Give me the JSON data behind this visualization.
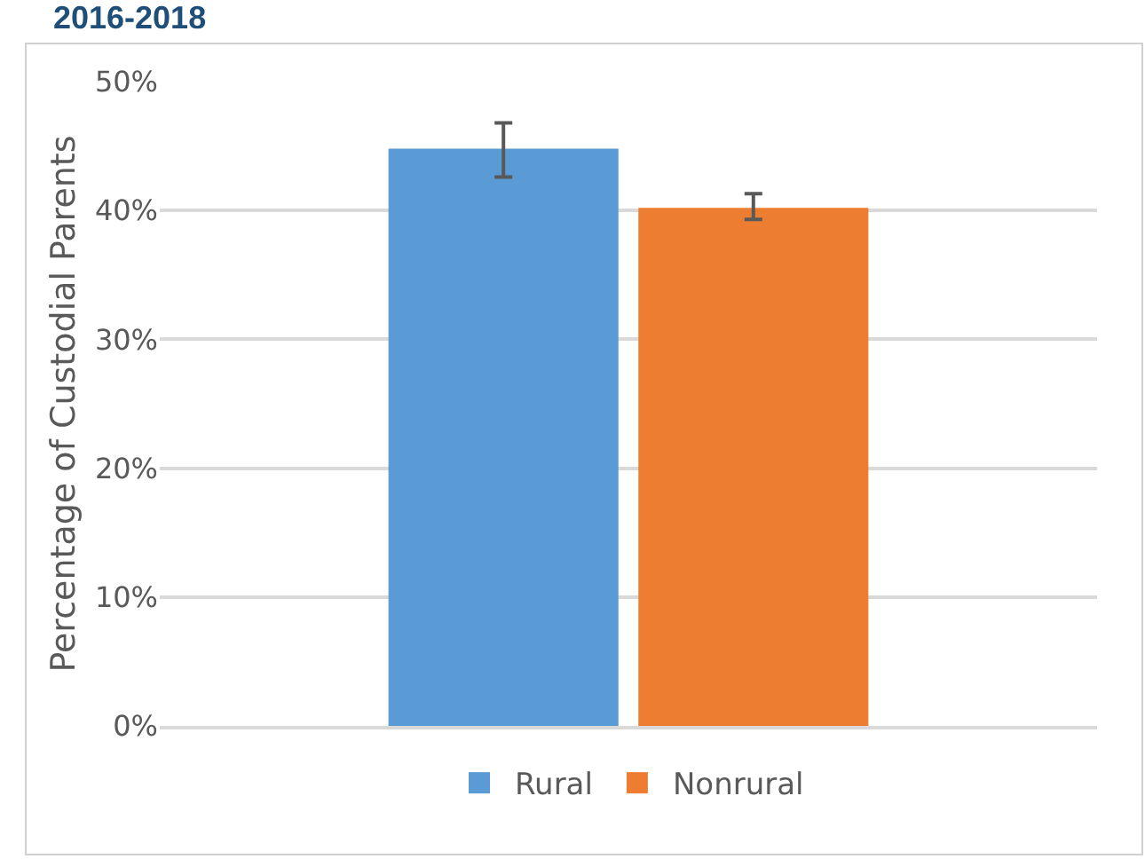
{
  "chart_data": {
    "type": "bar",
    "title": "2016-2018",
    "ylabel": "Percentage of Custodial Parents",
    "categories": [
      null
    ],
    "series": [
      {
        "name": "Rural",
        "color": "#5b9bd5",
        "values": [
          44.8
        ],
        "errors": [
          [
            42.6,
            46.8
          ]
        ]
      },
      {
        "name": "Nonrural",
        "color": "#ed7d31",
        "values": [
          40.2
        ],
        "errors": [
          [
            39.3,
            41.3
          ]
        ]
      }
    ],
    "ylim": [
      0,
      50
    ],
    "yticks": [
      {
        "value": 0,
        "label": "0%"
      },
      {
        "value": 10,
        "label": "10%"
      },
      {
        "value": 20,
        "label": "20%"
      },
      {
        "value": 30,
        "label": "30%"
      },
      {
        "value": 40,
        "label": "40%"
      },
      {
        "value": 50,
        "label": "50%"
      }
    ],
    "grid": "y",
    "legend": "bottom"
  }
}
